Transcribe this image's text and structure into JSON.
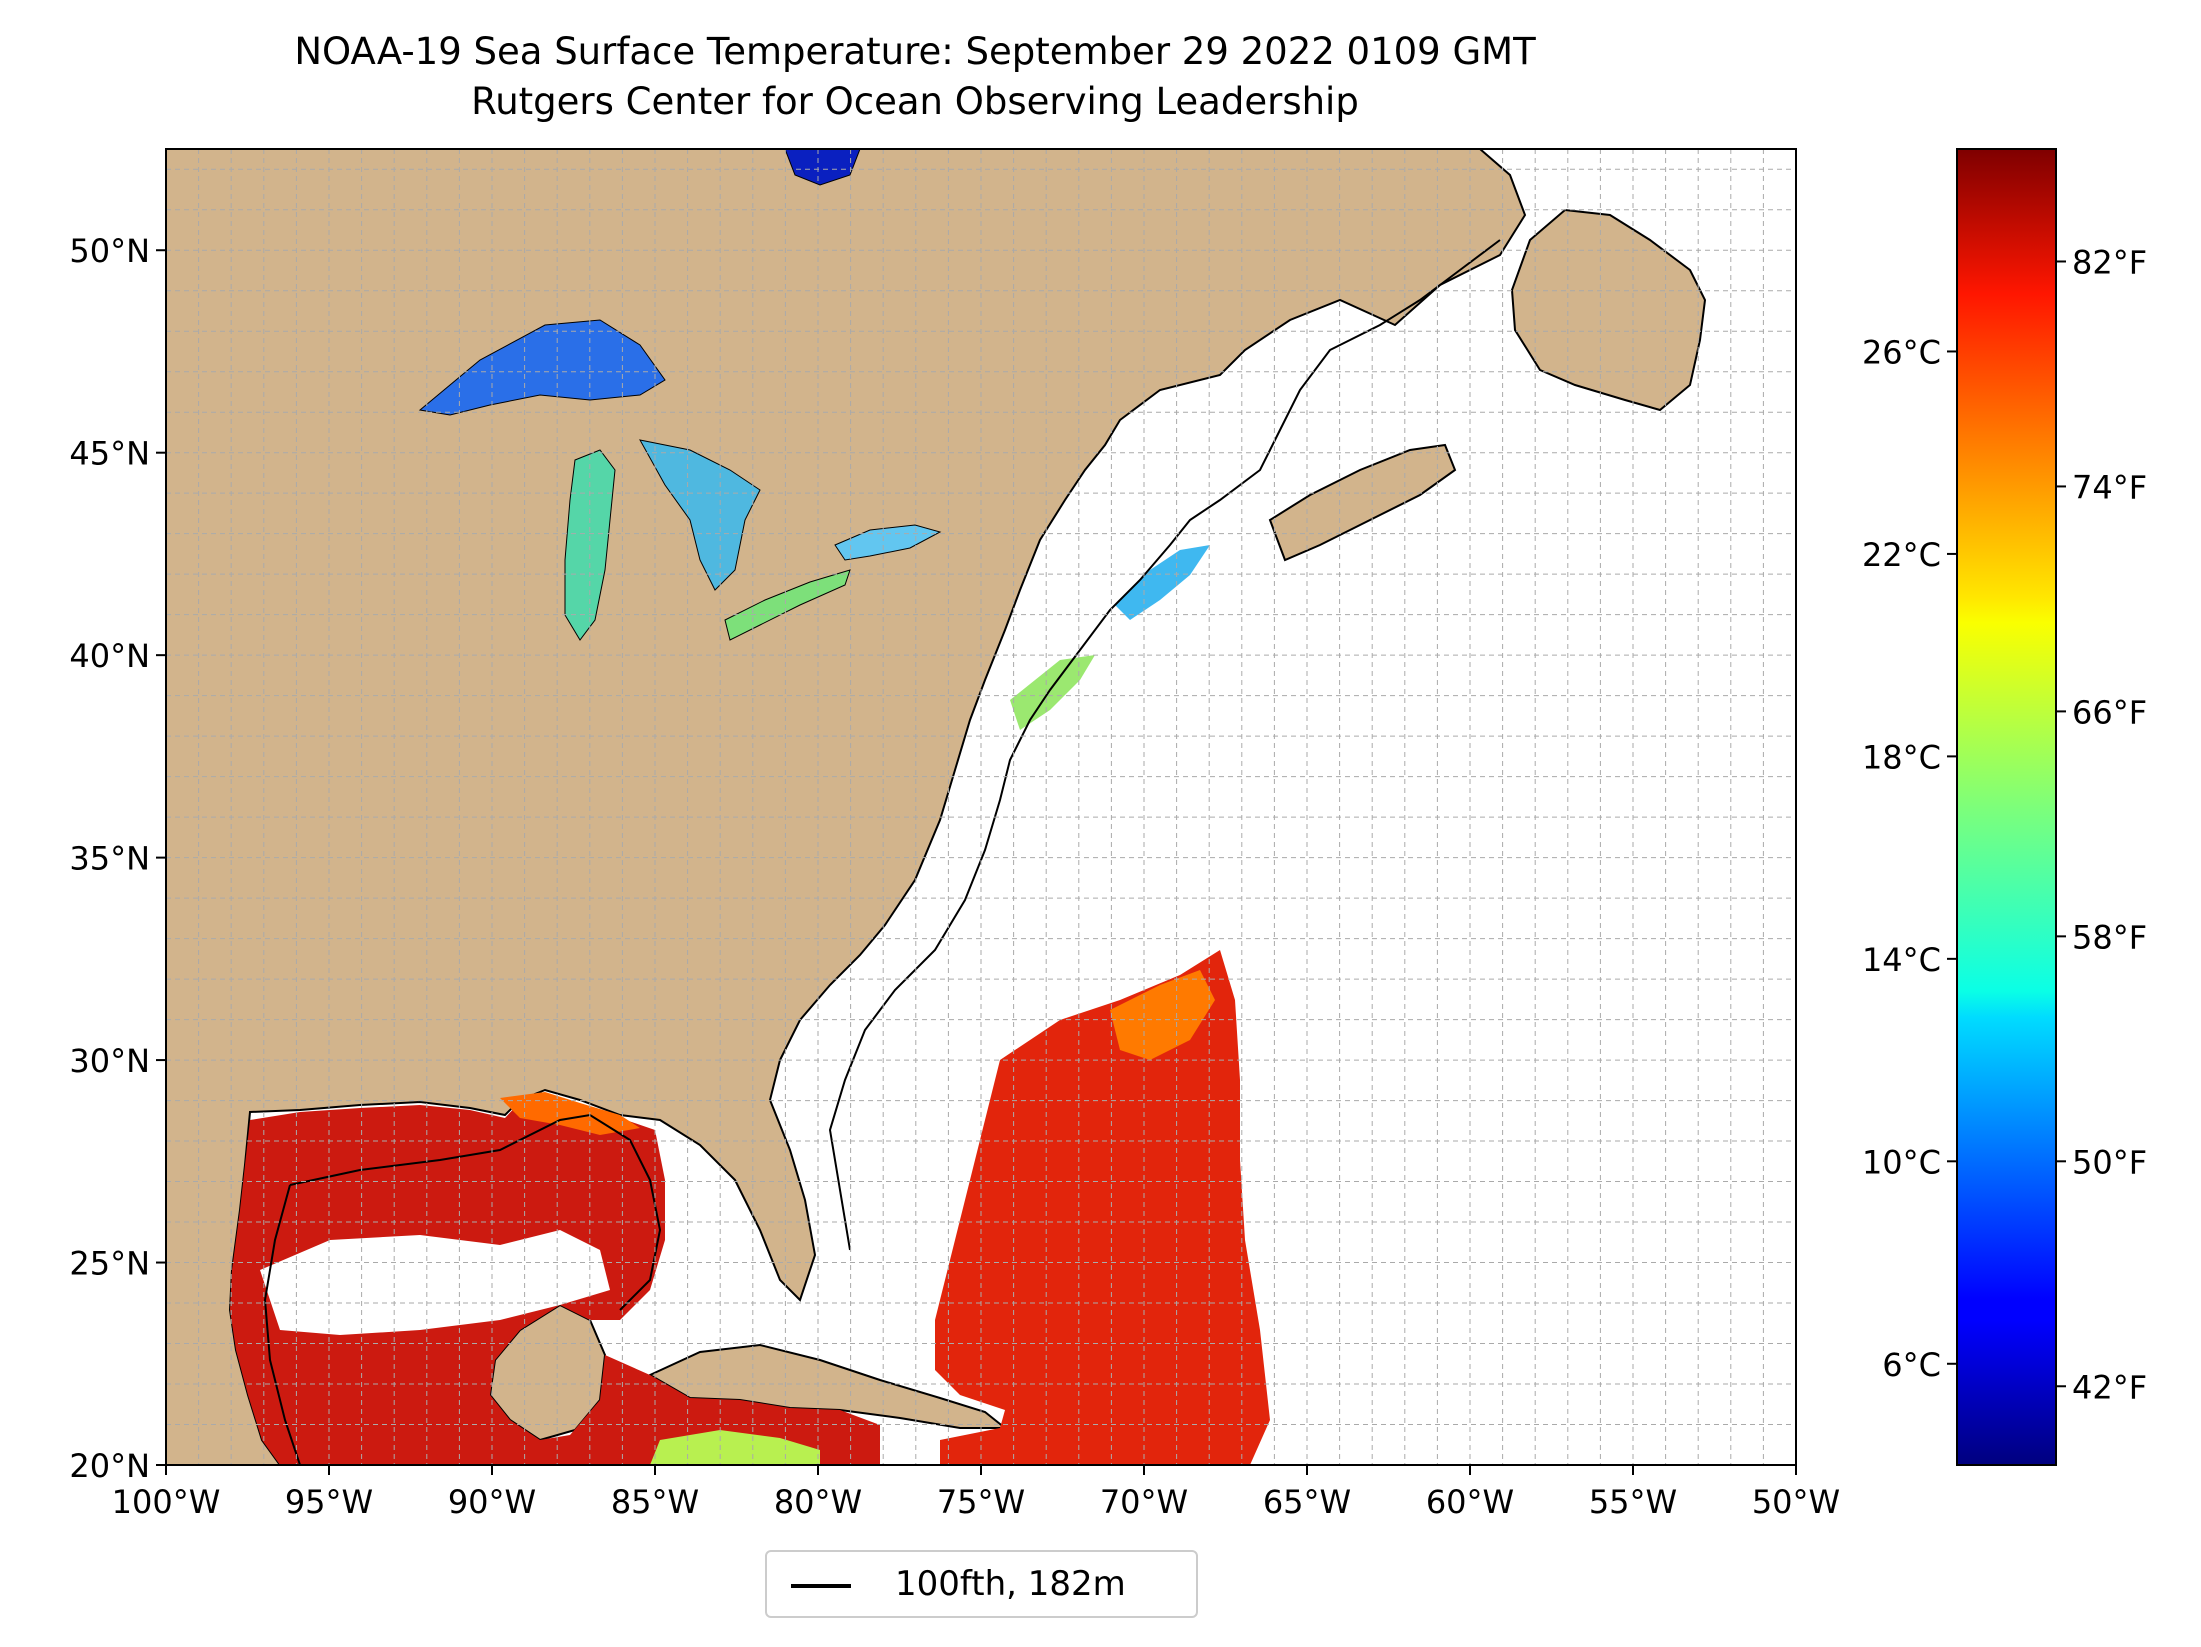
{
  "title": "NOAA-19 Sea Surface Temperature: September 29 2022 0109 GMT",
  "subtitle": "Rutgers Center for Ocean Observing Leadership",
  "map": {
    "extent": {
      "lon": [
        -100,
        -50
      ],
      "lat": [
        20,
        52.5
      ]
    },
    "lat_ticks": [
      {
        "v": 20,
        "label": "20°N"
      },
      {
        "v": 25,
        "label": "25°N"
      },
      {
        "v": 30,
        "label": "30°N"
      },
      {
        "v": 35,
        "label": "35°N"
      },
      {
        "v": 40,
        "label": "40°N"
      },
      {
        "v": 45,
        "label": "45°N"
      },
      {
        "v": 50,
        "label": "50°N"
      }
    ],
    "lon_ticks": [
      {
        "v": -100,
        "label": "100°W"
      },
      {
        "v": -95,
        "label": "95°W"
      },
      {
        "v": -90,
        "label": "90°W"
      },
      {
        "v": -85,
        "label": "85°W"
      },
      {
        "v": -80,
        "label": "80°W"
      },
      {
        "v": -75,
        "label": "75°W"
      },
      {
        "v": -70,
        "label": "70°W"
      },
      {
        "v": -65,
        "label": "65°W"
      },
      {
        "v": -60,
        "label": "60°W"
      },
      {
        "v": -55,
        "label": "55°W"
      },
      {
        "v": -50,
        "label": "50°W"
      }
    ],
    "grid": true,
    "land_color": "#d2b48c",
    "lake_color": "#9bb8e6",
    "ocean_color": "#ffffff"
  },
  "colorbar": {
    "colormap": "jet",
    "range_f": [
      39.2,
      86.0
    ],
    "celsius_ticks": [
      {
        "v": 6,
        "label": "6°C"
      },
      {
        "v": 10,
        "label": "10°C"
      },
      {
        "v": 14,
        "label": "14°C"
      },
      {
        "v": 18,
        "label": "18°C"
      },
      {
        "v": 22,
        "label": "22°C"
      },
      {
        "v": 26,
        "label": "26°C"
      }
    ],
    "fahrenheit_ticks": [
      {
        "v": 42,
        "label": "42°F"
      },
      {
        "v": 50,
        "label": "50°F"
      },
      {
        "v": 58,
        "label": "58°F"
      },
      {
        "v": 66,
        "label": "66°F"
      },
      {
        "v": 74,
        "label": "74°F"
      },
      {
        "v": 82,
        "label": "82°F"
      }
    ]
  },
  "legend": {
    "label": "100fth, 182m"
  }
}
